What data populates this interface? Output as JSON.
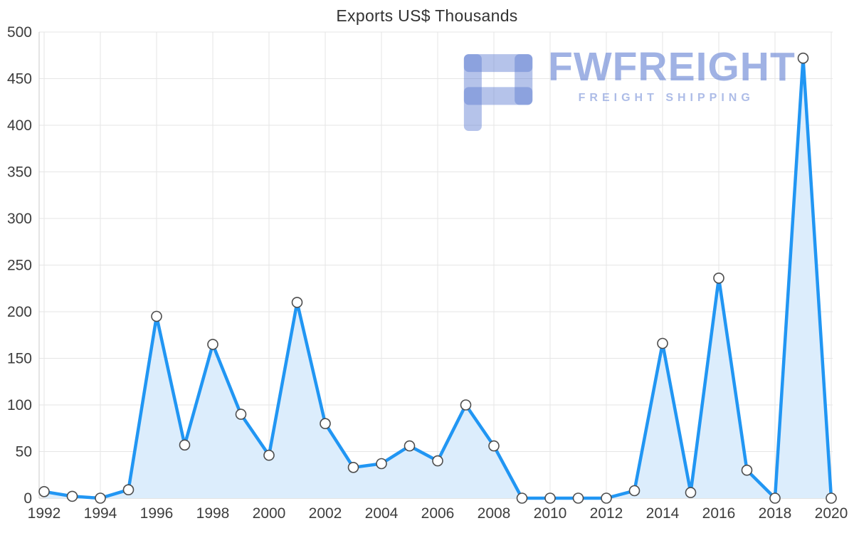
{
  "chart_data": {
    "type": "area",
    "title": "Exports US$ Thousands",
    "xlabel": "",
    "ylabel": "",
    "x": [
      1992,
      1993,
      1994,
      1995,
      1996,
      1997,
      1998,
      1999,
      2000,
      2001,
      2002,
      2003,
      2004,
      2005,
      2006,
      2007,
      2008,
      2009,
      2010,
      2011,
      2012,
      2013,
      2014,
      2015,
      2016,
      2017,
      2018,
      2019,
      2020
    ],
    "series": [
      {
        "name": "Exports US$ Thousands",
        "values": [
          7,
          2,
          0,
          9,
          195,
          57,
          165,
          90,
          46,
          210,
          80,
          33,
          37,
          56,
          40,
          100,
          56,
          0,
          0,
          0,
          0,
          8,
          166,
          6,
          236,
          30,
          0,
          472,
          0
        ]
      }
    ],
    "ylim": [
      0,
      500
    ],
    "ytick_step": 50,
    "xtick_step": 2,
    "grid": true,
    "legend": "none",
    "line_color": "#2196f3",
    "area_color": "#dcedfc",
    "marker_fill": "#ffffff",
    "marker_stroke": "#4d4d4d",
    "grid_color": "#e6e6e6",
    "axis_color": "#c9c9c9",
    "label_color": "#3d3d3d"
  },
  "watermark": {
    "brand": "FWFREIGHT",
    "tagline": "FREIGHT SHIPPING",
    "color": "#9cafe4"
  }
}
